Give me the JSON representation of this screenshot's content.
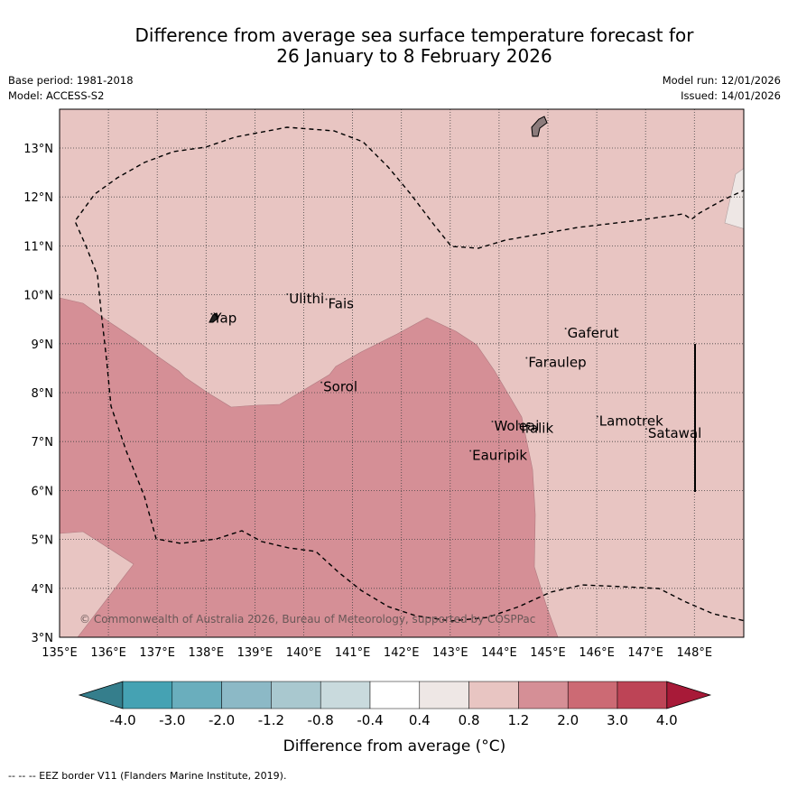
{
  "title": {
    "line1": "Difference from average sea surface temperature forecast for",
    "line2": "26 January to 8 February 2026"
  },
  "meta": {
    "base_period": "Base period: 1981-2018",
    "model": "Model: ACCESS-S2",
    "model_run": "Model run: 12/01/2026",
    "issued": "Issued: 14/01/2026"
  },
  "map": {
    "lon_range": [
      135,
      149
    ],
    "lat_range": [
      3,
      13.8
    ],
    "lon_ticks": [
      "135°E",
      "136°E",
      "137°E",
      "138°E",
      "139°E",
      "140°E",
      "141°E",
      "142°E",
      "143°E",
      "144°E",
      "145°E",
      "146°E",
      "147°E",
      "148°E"
    ],
    "lat_ticks": [
      "3°N",
      "4°N",
      "5°N",
      "6°N",
      "7°N",
      "8°N",
      "9°N",
      "10°N",
      "11°N",
      "12°N",
      "13°N"
    ],
    "places": [
      {
        "name": "Ulithi",
        "lon": 139.7,
        "lat": 9.9
      },
      {
        "name": "Fais",
        "lon": 140.5,
        "lat": 9.8
      },
      {
        "name": "Yap",
        "lon": 138.15,
        "lat": 9.5
      },
      {
        "name": "Gaferut",
        "lon": 145.4,
        "lat": 9.2
      },
      {
        "name": "Faraulep",
        "lon": 144.6,
        "lat": 8.6
      },
      {
        "name": "Sorol",
        "lon": 140.4,
        "lat": 8.1
      },
      {
        "name": "Lamotrek",
        "lon": 146.05,
        "lat": 7.4
      },
      {
        "name": "Woleai",
        "lon": 143.9,
        "lat": 7.3
      },
      {
        "name": "Ifalik",
        "lon": 144.45,
        "lat": 7.25
      },
      {
        "name": "Satawal",
        "lon": 147.05,
        "lat": 7.15
      },
      {
        "name": "Eauripik",
        "lon": 143.45,
        "lat": 6.7
      }
    ],
    "copyright": "© Commonwealth of Australia 2026, Bureau of Meteorology, supported by COSPPac"
  },
  "colorbar": {
    "tick_labels": [
      "-4.0",
      "-3.0",
      "-2.0",
      "-1.2",
      "-0.8",
      "-0.4",
      "0.4",
      "0.8",
      "1.2",
      "2.0",
      "3.0",
      "4.0"
    ],
    "colors": [
      "#357e8c",
      "#45a2b3",
      "#6aaebd",
      "#8cb9c6",
      "#a9c8cf",
      "#c9dadd",
      "#ffffff",
      "#eee7e5",
      "#e8c5c2",
      "#d58f96",
      "#cc6a74",
      "#bd4456",
      "#a81a38"
    ],
    "label": "Difference from average (°C)"
  },
  "footer": "--  --  -- EEZ border V11 (Flanders Marine Institute, 2019)."
}
